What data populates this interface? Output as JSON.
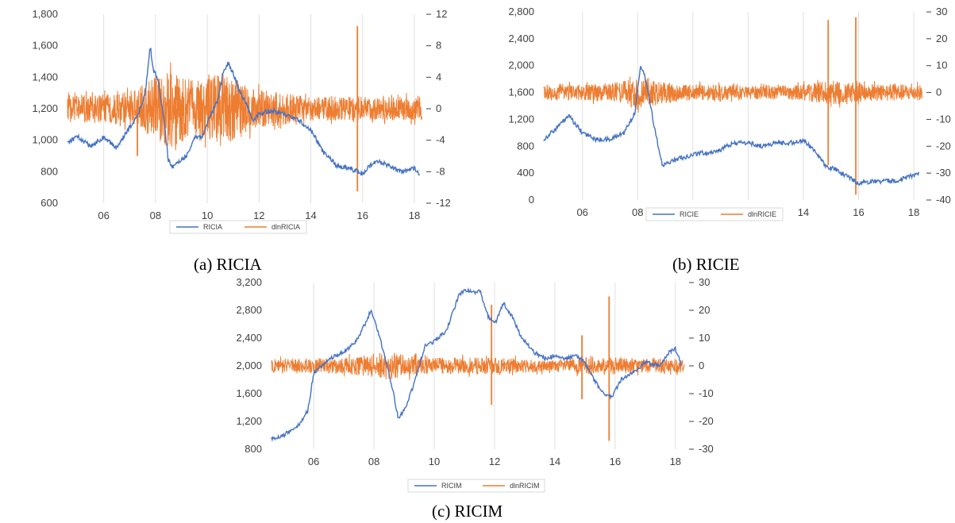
{
  "colors": {
    "level": "#4472C4",
    "diff": "#ED7D31",
    "grid": "#e0e0e0",
    "axis": "#bfbfbf"
  },
  "captions": [
    "(a) RICIA",
    "(b) RICIE",
    "(c) RICIM"
  ],
  "chart_data": [
    {
      "type": "line",
      "title": "",
      "x_ticks": [
        "06",
        "08",
        "10",
        "12",
        "14",
        "16",
        "18"
      ],
      "x_range": [
        2004.6,
        2018.4
      ],
      "y_left": {
        "ticks": [
          "600",
          "800",
          "1,000",
          "1,200",
          "1,400",
          "1,600",
          "1,800"
        ],
        "range": [
          600,
          1800
        ]
      },
      "y_right": {
        "ticks": [
          "-12",
          "-8",
          "-4",
          "0",
          "4",
          "8",
          "12"
        ],
        "range": [
          -12,
          12
        ]
      },
      "legend": {
        "placement": "bottom",
        "entries": [
          "RICIA",
          "dlnRICIA"
        ]
      },
      "series": [
        {
          "name": "RICIA",
          "axis": "left",
          "x": [
            2004.6,
            2005.0,
            2005.5,
            2006.0,
            2006.5,
            2007.0,
            2007.3,
            2007.6,
            2007.8,
            2007.9,
            2008.1,
            2008.3,
            2008.5,
            2008.7,
            2008.9,
            2009.2,
            2009.5,
            2009.8,
            2010.1,
            2010.4,
            2010.6,
            2010.8,
            2011.0,
            2011.2,
            2011.5,
            2011.8,
            2012.0,
            2012.5,
            2013.0,
            2013.5,
            2014.0,
            2014.5,
            2015.0,
            2015.5,
            2016.0,
            2016.5,
            2017.0,
            2017.5,
            2018.0,
            2018.2
          ],
          "y": [
            990,
            1020,
            960,
            1020,
            950,
            1080,
            1150,
            1290,
            1600,
            1460,
            1380,
            1160,
            870,
            830,
            860,
            900,
            1020,
            1020,
            1150,
            1250,
            1420,
            1490,
            1430,
            1330,
            1230,
            1120,
            1170,
            1190,
            1160,
            1130,
            1070,
            920,
            840,
            820,
            790,
            870,
            840,
            800,
            820,
            790
          ]
        },
        {
          "name": "dlnRICIA",
          "axis": "right",
          "band_x": [
            2004.6,
            2006.0,
            2007.0,
            2007.5,
            2008.0,
            2008.5,
            2009.0,
            2009.5,
            2010.0,
            2010.5,
            2011.0,
            2011.5,
            2012.0,
            2013.0,
            2014.0,
            2015.0,
            2016.0,
            2017.0,
            2018.3
          ],
          "band_amp": [
            1.8,
            1.8,
            2.2,
            3.0,
            4.0,
            5.0,
            4.5,
            3.5,
            4.0,
            5.0,
            4.0,
            3.0,
            2.5,
            2.0,
            1.5,
            1.5,
            1.5,
            1.5,
            1.5
          ],
          "spikes": [
            {
              "x": 2007.3,
              "y": -6.0
            },
            {
              "x": 2008.8,
              "y": -4.5
            },
            {
              "x": 2015.8,
              "y": 10.5
            },
            {
              "x": 2015.8,
              "y": -10.5
            }
          ]
        }
      ]
    },
    {
      "type": "line",
      "title": "",
      "x_ticks": [
        "06",
        "08",
        "10",
        "12",
        "14",
        "16",
        "18"
      ],
      "x_range": [
        2004.6,
        2018.4
      ],
      "y_left": {
        "ticks": [
          "0",
          "400",
          "800",
          "1,200",
          "1,600",
          "2,000",
          "2,400",
          "2,800"
        ],
        "range": [
          0,
          2800
        ]
      },
      "y_right": {
        "ticks": [
          "-40",
          "-30",
          "-20",
          "-10",
          "0",
          "10",
          "20",
          "30"
        ],
        "range": [
          -40,
          30
        ]
      },
      "legend": {
        "placement": "bottom",
        "entries": [
          "RICIE",
          "dlnRICIE"
        ]
      },
      "series": [
        {
          "name": "RICIE",
          "axis": "left",
          "x": [
            2004.6,
            2005.0,
            2005.5,
            2006.0,
            2006.5,
            2007.0,
            2007.5,
            2007.9,
            2008.1,
            2008.3,
            2008.6,
            2008.9,
            2009.3,
            2009.8,
            2010.2,
            2010.6,
            2011.0,
            2011.5,
            2012.0,
            2012.5,
            2013.0,
            2013.5,
            2014.0,
            2014.4,
            2014.8,
            2015.2,
            2015.6,
            2016.0,
            2016.5,
            2017.0,
            2017.5,
            2018.2
          ],
          "y": [
            900,
            1050,
            1250,
            1000,
            900,
            900,
            1000,
            1300,
            2000,
            1800,
            1100,
            500,
            600,
            650,
            700,
            700,
            750,
            850,
            850,
            800,
            850,
            850,
            880,
            750,
            500,
            450,
            350,
            250,
            280,
            280,
            300,
            400
          ]
        },
        {
          "name": "dlnRICIE",
          "axis": "right",
          "band_x": [
            2004.6,
            2006.0,
            2007.0,
            2007.5,
            2008.0,
            2008.5,
            2009.0,
            2009.5,
            2010.0,
            2011.0,
            2012.0,
            2013.0,
            2014.0,
            2015.0,
            2016.0,
            2017.0,
            2018.3
          ],
          "band_amp": [
            3.0,
            3.0,
            3.5,
            4.5,
            6.0,
            5.0,
            4.0,
            3.0,
            3.0,
            3.0,
            2.5,
            2.5,
            3.0,
            4.5,
            3.5,
            3.0,
            3.0
          ],
          "spikes": [
            {
              "x": 2014.9,
              "y": 27.0
            },
            {
              "x": 2014.9,
              "y": -27.0
            },
            {
              "x": 2015.9,
              "y": 28.0
            },
            {
              "x": 2015.9,
              "y": -38.0
            }
          ]
        }
      ]
    },
    {
      "type": "line",
      "title": "",
      "x_ticks": [
        "06",
        "08",
        "10",
        "12",
        "14",
        "16",
        "18"
      ],
      "x_range": [
        2004.6,
        2018.4
      ],
      "y_left": {
        "ticks": [
          "800",
          "1,200",
          "1,600",
          "2,000",
          "2,400",
          "2,800",
          "3,200"
        ],
        "range": [
          800,
          3200
        ]
      },
      "y_right": {
        "ticks": [
          "-30",
          "-20",
          "-10",
          "0",
          "10",
          "20",
          "30"
        ],
        "range": [
          -30,
          30
        ]
      },
      "legend": {
        "placement": "bottom",
        "entries": [
          "RICIM",
          "dlnRICIM"
        ]
      },
      "series": [
        {
          "name": "RICIM",
          "axis": "left",
          "x": [
            2004.6,
            2005.0,
            2005.5,
            2005.8,
            2006.0,
            2006.5,
            2007.0,
            2007.4,
            2007.7,
            2007.9,
            2008.2,
            2008.6,
            2008.8,
            2009.0,
            2009.3,
            2009.7,
            2010.0,
            2010.4,
            2010.8,
            2011.0,
            2011.3,
            2011.5,
            2011.8,
            2012.0,
            2012.3,
            2012.6,
            2012.9,
            2013.3,
            2013.7,
            2014.0,
            2014.3,
            2014.7,
            2015.0,
            2015.3,
            2015.6,
            2015.9,
            2016.2,
            2016.6,
            2017.0,
            2017.5,
            2017.8,
            2018.0,
            2018.2
          ],
          "y": [
            950,
            1000,
            1150,
            1350,
            1900,
            2100,
            2200,
            2350,
            2600,
            2800,
            2400,
            1700,
            1250,
            1350,
            1700,
            2300,
            2350,
            2500,
            3000,
            3100,
            3050,
            3100,
            2700,
            2600,
            2900,
            2700,
            2400,
            2200,
            2100,
            2150,
            2100,
            2150,
            2050,
            1800,
            1600,
            1550,
            1800,
            1900,
            2050,
            2000,
            2200,
            2250,
            2000
          ]
        },
        {
          "name": "dlnRICIM",
          "axis": "right",
          "band_x": [
            2004.6,
            2006.0,
            2007.0,
            2007.5,
            2008.0,
            2008.5,
            2009.0,
            2009.5,
            2010.0,
            2011.0,
            2012.0,
            2013.0,
            2014.0,
            2015.0,
            2016.0,
            2017.0,
            2018.3
          ],
          "band_amp": [
            2.5,
            2.5,
            3.0,
            3.5,
            4.5,
            5.0,
            4.0,
            3.0,
            3.0,
            3.0,
            3.0,
            2.5,
            2.0,
            3.0,
            3.0,
            2.5,
            2.5
          ],
          "spikes": [
            {
              "x": 2011.9,
              "y": 22.0
            },
            {
              "x": 2011.9,
              "y": -14.0
            },
            {
              "x": 2014.9,
              "y": 11.0
            },
            {
              "x": 2014.9,
              "y": -12.0
            },
            {
              "x": 2015.8,
              "y": 25.0
            },
            {
              "x": 2015.8,
              "y": -27.0
            }
          ]
        }
      ]
    }
  ]
}
